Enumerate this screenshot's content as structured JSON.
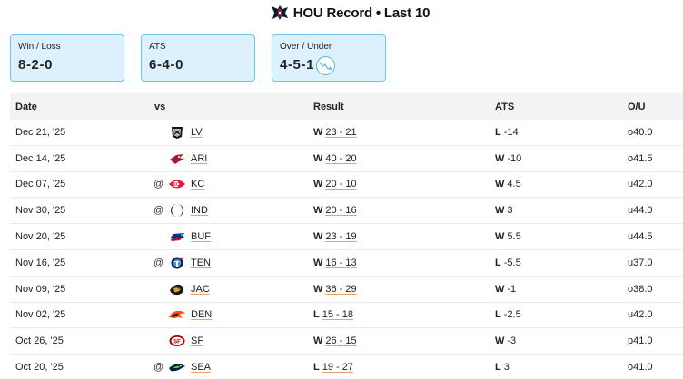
{
  "header": {
    "title": "HOU Record • Last 10",
    "logo_icon": "texans-logo-icon"
  },
  "cards": [
    {
      "label": "Win / Loss",
      "value": "8-2-0"
    },
    {
      "label": "ATS",
      "value": "6-4-0"
    },
    {
      "label": "Over / Under",
      "value": "4-5-1",
      "icon": "trend-down-icon"
    }
  ],
  "columns": {
    "date": "Date",
    "vs": "vs",
    "result": "Result",
    "ats": "ATS",
    "ou": "O/U"
  },
  "colors": {
    "accent": "#6cc6ea",
    "card_bg": "#dcf1fb",
    "link_underline": "#e8a06b",
    "header_bg": "#f1f3f5"
  },
  "games": [
    {
      "date": "Dec 21, '25",
      "at": "",
      "opp": "LV",
      "logo": "raiders-logo-icon",
      "res": "W",
      "score": "23 - 21",
      "ats": "L",
      "ats_line": "-14",
      "ou": "o40.0"
    },
    {
      "date": "Dec 14, '25",
      "at": "",
      "opp": "ARI",
      "logo": "cardinals-logo-icon",
      "res": "W",
      "score": "40 - 20",
      "ats": "W",
      "ats_line": "-10",
      "ou": "o41.5"
    },
    {
      "date": "Dec 07, '25",
      "at": "@",
      "opp": "KC",
      "logo": "chiefs-logo-icon",
      "res": "W",
      "score": "20 - 10",
      "ats": "W",
      "ats_line": "4.5",
      "ou": "u42.0"
    },
    {
      "date": "Nov 30, '25",
      "at": "@",
      "opp": "IND",
      "logo": "colts-logo-icon",
      "res": "W",
      "score": "20 - 16",
      "ats": "W",
      "ats_line": "3",
      "ou": "u44.0"
    },
    {
      "date": "Nov 20, '25",
      "at": "",
      "opp": "BUF",
      "logo": "bills-logo-icon",
      "res": "W",
      "score": "23 - 19",
      "ats": "W",
      "ats_line": "5.5",
      "ou": "u44.5"
    },
    {
      "date": "Nov 16, '25",
      "at": "@",
      "opp": "TEN",
      "logo": "titans-logo-icon",
      "res": "W",
      "score": "16 - 13",
      "ats": "L",
      "ats_line": "-5.5",
      "ou": "u37.0"
    },
    {
      "date": "Nov 09, '25",
      "at": "",
      "opp": "JAC",
      "logo": "jaguars-logo-icon",
      "res": "W",
      "score": "36 - 29",
      "ats": "W",
      "ats_line": "-1",
      "ou": "o38.0"
    },
    {
      "date": "Nov 02, '25",
      "at": "",
      "opp": "DEN",
      "logo": "broncos-logo-icon",
      "res": "L",
      "score": "15 - 18",
      "ats": "L",
      "ats_line": "-2.5",
      "ou": "u42.0"
    },
    {
      "date": "Oct 26, '25",
      "at": "",
      "opp": "SF",
      "logo": "49ers-logo-icon",
      "res": "W",
      "score": "26 - 15",
      "ats": "W",
      "ats_line": "-3",
      "ou": "p41.0"
    },
    {
      "date": "Oct 20, '25",
      "at": "@",
      "opp": "SEA",
      "logo": "seahawks-logo-icon",
      "res": "L",
      "score": "19 - 27",
      "ats": "L",
      "ats_line": "3",
      "ou": "o41.0"
    }
  ]
}
